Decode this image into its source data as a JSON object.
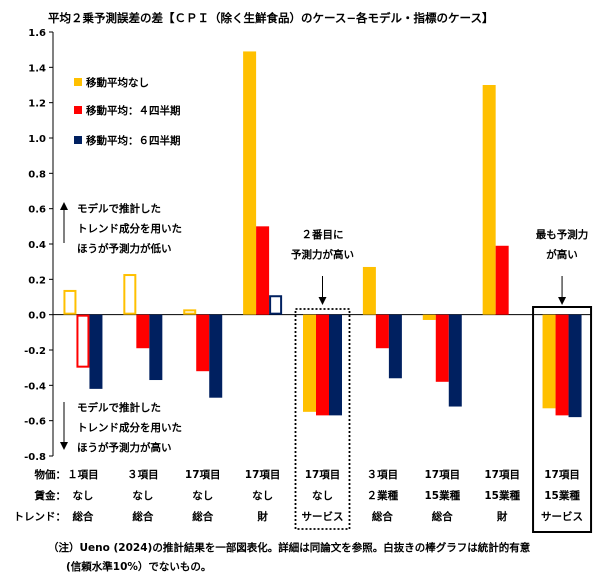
{
  "chart_data": {
    "type": "bar",
    "title": "平均２乗予測誤差の差【ＣＰＩ（除く生鮮食品）のケース−各モデル・指標のケース】",
    "ylim": [
      -0.8,
      1.6
    ],
    "yticks": [
      "1.6",
      "1.4",
      "1.2",
      "1.0",
      "0.8",
      "0.6",
      "0.4",
      "0.2",
      "0.0",
      "-0.2",
      "-0.4",
      "-0.6",
      "-0.8"
    ],
    "ytick_values": [
      1.6,
      1.4,
      1.2,
      1.0,
      0.8,
      0.6,
      0.4,
      0.2,
      0.0,
      -0.2,
      -0.4,
      -0.6,
      -0.8
    ],
    "row_labels": [
      "物価：",
      "賃金：",
      "トレンド："
    ],
    "categories": [
      {
        "lines": [
          "１項目",
          "なし",
          "総合"
        ]
      },
      {
        "lines": [
          "３項目",
          "なし",
          "総合"
        ]
      },
      {
        "lines": [
          "17項目",
          "なし",
          "総合"
        ]
      },
      {
        "lines": [
          "17項目",
          "なし",
          "財"
        ]
      },
      {
        "lines": [
          "17項目",
          "なし",
          "サービス"
        ]
      },
      {
        "lines": [
          "３項目",
          "２業種",
          "総合"
        ]
      },
      {
        "lines": [
          "17項目",
          "15業種",
          "総合"
        ]
      },
      {
        "lines": [
          "17項目",
          "15業種",
          "財"
        ]
      },
      {
        "lines": [
          "17項目",
          "15業種",
          "サービス"
        ]
      }
    ],
    "series": [
      {
        "name": "移動平均なし",
        "color": "#FFC000",
        "values": [
          0.14,
          0.23,
          0.03,
          1.49,
          -0.55,
          0.27,
          -0.03,
          1.3,
          -0.53
        ],
        "hollow": [
          true,
          true,
          true,
          false,
          false,
          false,
          false,
          false,
          false
        ]
      },
      {
        "name": "移動平均：４四半期",
        "color": "#FF0000",
        "values": [
          -0.3,
          -0.19,
          -0.32,
          0.5,
          -0.57,
          -0.19,
          -0.38,
          0.39,
          -0.57
        ],
        "hollow": [
          true,
          false,
          false,
          false,
          false,
          false,
          false,
          false,
          false
        ]
      },
      {
        "name": "移動平均：６四半期",
        "color": "#002060",
        "values": [
          -0.42,
          -0.37,
          -0.47,
          0.11,
          -0.57,
          -0.36,
          -0.52,
          0.01,
          -0.58
        ],
        "hollow": [
          false,
          false,
          false,
          true,
          false,
          false,
          false,
          true,
          false
        ]
      }
    ],
    "legend_placement": "top-left",
    "annotations": {
      "upper": [
        "モデルで推計した",
        "トレンド成分を用いた",
        "ほうが予測力が低い"
      ],
      "lower": [
        "モデルで推計した",
        "トレンド成分を用いた",
        "ほうが予測力が高い"
      ],
      "second_best": [
        "２番目に",
        "予測力が高い"
      ],
      "best": [
        "最も予測力",
        "が高い"
      ]
    },
    "note": [
      "（注）Ueno (2024)の推計結果を一部図表化。詳細は同論文を参照。白抜きの棒グラフは統計的有意",
      "(信頼水準10%）でないもの。"
    ]
  }
}
